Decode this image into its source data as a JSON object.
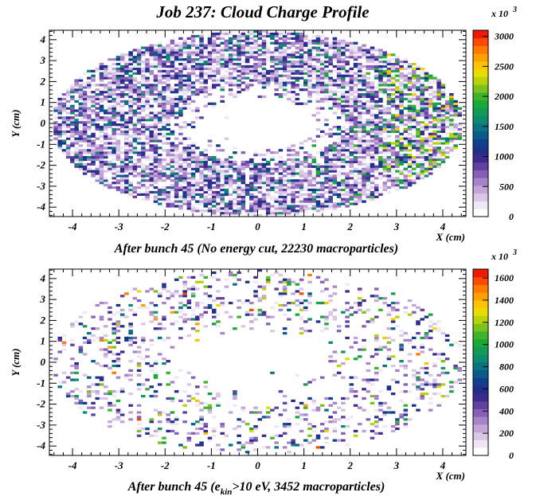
{
  "title": "Job 237: Cloud Charge Profile",
  "palette": [
    "#ffffff",
    "#efe7f4",
    "#d9c7e6",
    "#c3a6d8",
    "#a684c7",
    "#8560b6",
    "#62409f",
    "#3c2a8c",
    "#1f2f8a",
    "#123f8c",
    "#0a5a8c",
    "#0a7280",
    "#0e8a70",
    "#139a54",
    "#1aa83a",
    "#3fb42a",
    "#7cc21e",
    "#b8d20e",
    "#e8dc00",
    "#ffc400",
    "#ffa000",
    "#ff7a00",
    "#ff4a00",
    "#ee1a00"
  ],
  "chart_data": [
    {
      "type": "heatmap",
      "title": "",
      "caption": "After bunch 45 (No energy cut, 22230 macroparticles)",
      "xlabel": "X (cm)",
      "ylabel": "Y (cm)",
      "xlim": [
        -4.5,
        4.5
      ],
      "ylim": [
        -4.45,
        4.45
      ],
      "x_ticks": [
        -4,
        -3,
        -2,
        -1,
        0,
        1,
        2,
        3,
        4
      ],
      "y_ticks": [
        -4,
        -3,
        -2,
        -1,
        0,
        1,
        2,
        3,
        4
      ],
      "z_multiplier_label": "x 10",
      "z_multiplier_exponent": "3",
      "z_range": [
        0,
        3100
      ],
      "z_ticks": [
        0,
        500,
        1000,
        1500,
        2000,
        2500,
        3000
      ],
      "grid": false,
      "legend": "color bar right"
    },
    {
      "type": "heatmap",
      "title": "",
      "caption_prefix": "After bunch 45 (e",
      "caption_sub": "kin",
      "caption_suffix": ">10 eV, 3452 macroparticles)",
      "xlabel": "X (cm)",
      "ylabel": "Y (cm)",
      "xlim": [
        -4.5,
        4.5
      ],
      "ylim": [
        -4.45,
        4.45
      ],
      "x_ticks": [
        -4,
        -3,
        -2,
        -1,
        0,
        1,
        2,
        3,
        4
      ],
      "y_ticks": [
        -4,
        -3,
        -2,
        -1,
        0,
        1,
        2,
        3,
        4
      ],
      "z_multiplier_label": "x 10",
      "z_multiplier_exponent": "3",
      "z_range": [
        0,
        1680
      ],
      "z_ticks": [
        0,
        200,
        400,
        600,
        800,
        1000,
        1200,
        1400,
        1600
      ],
      "grid": false,
      "legend": "color bar right"
    }
  ]
}
